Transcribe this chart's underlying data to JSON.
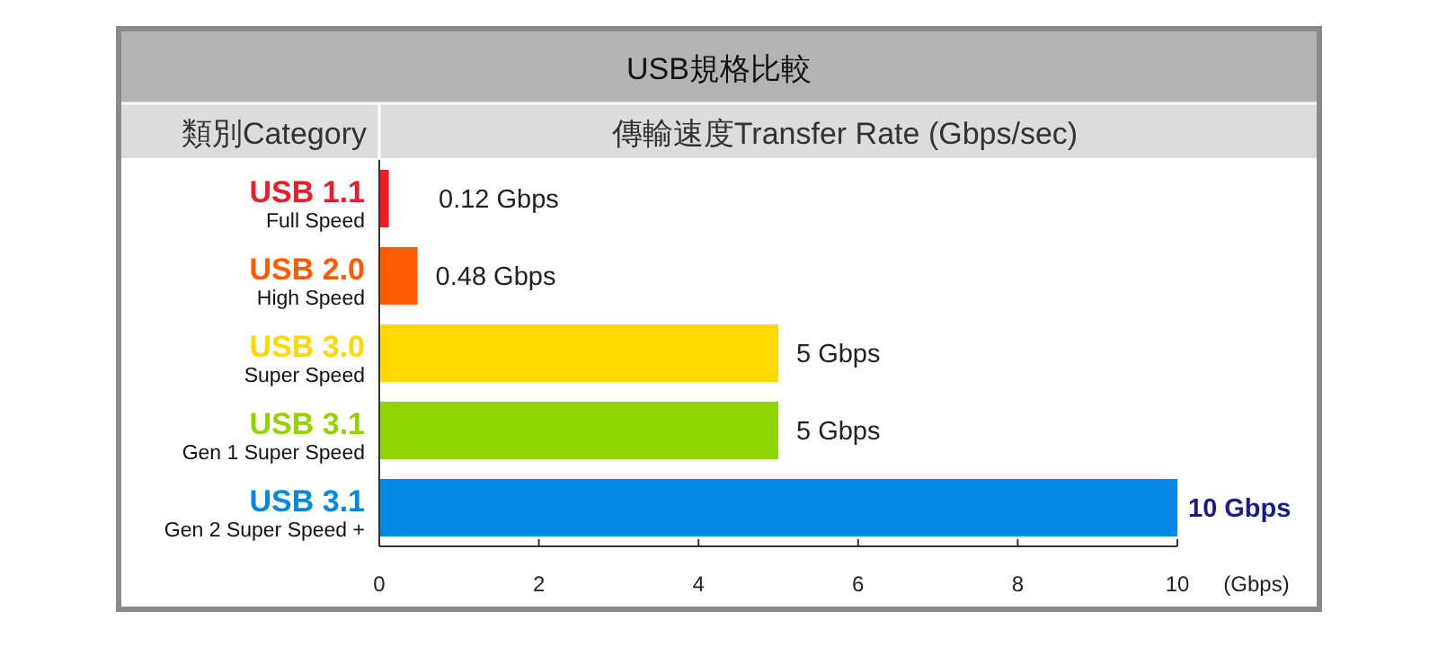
{
  "chart_data": {
    "type": "bar",
    "orientation": "horizontal",
    "title": "USB規格比較",
    "subtitle": "傳輸速度Transfer Rate (Gbps/sec)",
    "ylabel": "類別Category",
    "xlabel": "(Gbps)",
    "categories": [
      "USB 1.1\nFull Speed",
      "USB 2.0\nHigh Speed",
      "USB 3.0\nSuper Speed",
      "USB 3.1\nGen 1 Super Speed",
      "USB 3.1\nGen 2 Super Speed +"
    ],
    "values": [
      0.12,
      0.48,
      5,
      5,
      10
    ],
    "colors": [
      "#ee1c25",
      "#ff5a00",
      "#ffd800",
      "#92d400",
      "#0088e2"
    ],
    "value_labels": [
      "0.12 Gbps",
      "0.48 Gbps",
      "5 Gbps",
      "5 Gbps",
      "10 Gbps"
    ],
    "xlim": [
      0,
      10
    ],
    "xticks": [
      0,
      2,
      4,
      6,
      8,
      10
    ]
  }
}
